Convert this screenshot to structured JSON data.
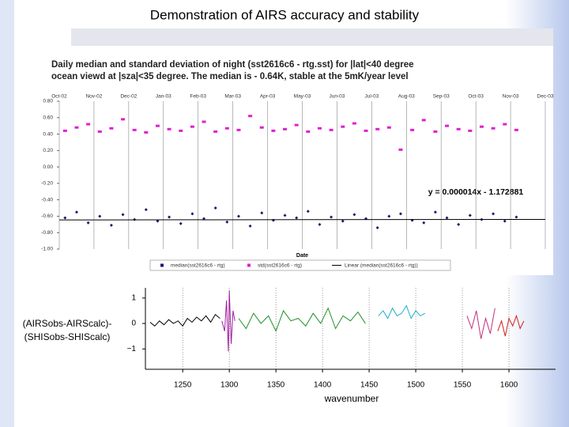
{
  "slide_title": "Demonstration of AIRS accuracy and stability",
  "chart_data": [
    {
      "type": "scatter",
      "title_lines": [
        "Daily median and standard deviation of night (sst2616c6 - rtg.sst) for |lat|<40 degree",
        "ocean viewd at |sza|<35 degree. The median is - 0.64K, stable at the 5mK/year level"
      ],
      "xlabel": "Date",
      "annotation": "y = 0.000014x - 1.172881",
      "xlim": [
        0,
        420
      ],
      "xticks": [
        {
          "value": 0,
          "label": "Oct-02"
        },
        {
          "value": 30,
          "label": "Nov-02"
        },
        {
          "value": 60,
          "label": "Dec-02"
        },
        {
          "value": 90,
          "label": "Jan-03"
        },
        {
          "value": 120,
          "label": "Feb-03"
        },
        {
          "value": 150,
          "label": "Mar-03"
        },
        {
          "value": 180,
          "label": "Apr-03"
        },
        {
          "value": 210,
          "label": "May-03"
        },
        {
          "value": 240,
          "label": "Jun-03"
        },
        {
          "value": 270,
          "label": "Jul-03"
        },
        {
          "value": 300,
          "label": "Aug-03"
        },
        {
          "value": 330,
          "label": "Sep-03"
        },
        {
          "value": 360,
          "label": "Oct-03"
        },
        {
          "value": 390,
          "label": "Nov-03"
        },
        {
          "value": 420,
          "label": "Dec-03"
        }
      ],
      "ylim": [
        -1,
        0.8
      ],
      "yticks": [
        {
          "value": 0.8,
          "label": "0.80"
        },
        {
          "value": 0.6,
          "label": "0.60"
        },
        {
          "value": 0.4,
          "label": "0.40"
        },
        {
          "value": 0.2,
          "label": "0.20"
        },
        {
          "value": 0,
          "label": "0.00"
        },
        {
          "value": -0.2,
          "label": "-0.20"
        },
        {
          "value": -0.4,
          "label": "-0.40"
        },
        {
          "value": -0.6,
          "label": "-0.60"
        },
        {
          "value": -0.8,
          "label": "-0.80"
        },
        {
          "value": -1,
          "label": "-1.00"
        }
      ],
      "grid": "vertical",
      "series": [
        {
          "name": "median(sst2616c6 - rtg)",
          "color": "#1a1a6e",
          "marker": "diamond",
          "x": [
            5,
            15,
            25,
            35,
            45,
            55,
            65,
            75,
            85,
            95,
            105,
            115,
            125,
            135,
            145,
            155,
            165,
            175,
            185,
            195,
            205,
            215,
            225,
            235,
            245,
            255,
            265,
            275,
            285,
            295,
            305,
            315,
            325,
            335,
            345,
            355,
            365,
            375,
            385,
            395
          ],
          "values": [
            -0.62,
            -0.55,
            -0.68,
            -0.6,
            -0.71,
            -0.58,
            -0.64,
            -0.52,
            -0.66,
            -0.61,
            -0.69,
            -0.57,
            -0.63,
            -0.5,
            -0.67,
            -0.6,
            -0.72,
            -0.56,
            -0.65,
            -0.59,
            -0.62,
            -0.54,
            -0.7,
            -0.61,
            -0.66,
            -0.58,
            -0.63,
            -0.74,
            -0.6,
            -0.57,
            -0.65,
            -0.68,
            -0.55,
            -0.62,
            -0.7,
            -0.59,
            -0.64,
            -0.57,
            -0.66,
            -0.61
          ]
        },
        {
          "name": "std(sst2616c6 - rtg)",
          "color": "#e020d0",
          "marker": "square",
          "x": [
            5,
            15,
            25,
            35,
            45,
            55,
            65,
            75,
            85,
            95,
            105,
            115,
            125,
            135,
            145,
            155,
            165,
            175,
            185,
            195,
            205,
            215,
            225,
            235,
            245,
            255,
            265,
            275,
            285,
            295,
            305,
            315,
            325,
            335,
            345,
            355,
            365,
            375,
            385,
            395
          ],
          "values": [
            0.44,
            0.48,
            0.52,
            0.43,
            0.47,
            0.58,
            0.45,
            0.42,
            0.5,
            0.46,
            0.44,
            0.49,
            0.55,
            0.43,
            0.47,
            0.45,
            0.62,
            0.48,
            0.44,
            0.46,
            0.51,
            0.43,
            0.47,
            0.45,
            0.49,
            0.53,
            0.44,
            0.46,
            0.48,
            0.21,
            0.45,
            0.57,
            0.43,
            0.5,
            0.46,
            0.44,
            0.49,
            0.47,
            0.52,
            0.45
          ]
        },
        {
          "name": "Linear (median(sst2616c6 - rtg))",
          "color": "#000000",
          "marker": "line",
          "x": [
            0,
            420
          ],
          "values": [
            -0.645,
            -0.639
          ]
        }
      ]
    },
    {
      "type": "line",
      "ylabel_lines": [
        "(AIRSobs-AIRScalc)-",
        "(SHISobs-SHIScalc)"
      ],
      "xlabel": "wavenumber",
      "xlim": [
        1210,
        1650
      ],
      "xticks": [
        1250,
        1300,
        1350,
        1400,
        1450,
        1500,
        1550,
        1600
      ],
      "ylim": [
        -1.8,
        1.4
      ],
      "yticks": [
        1,
        0,
        {
          "value": -1,
          "label": "−1"
        }
      ],
      "grid": "vertical",
      "series": [
        {
          "name": null,
          "color": "#000000",
          "x": [
            1215,
            1220,
            1225,
            1230,
            1235,
            1240,
            1245,
            1250,
            1255,
            1260,
            1265,
            1270,
            1275,
            1280,
            1285,
            1290
          ],
          "values": [
            0.05,
            -0.1,
            0.1,
            -0.05,
            0.15,
            0.0,
            0.1,
            -0.1,
            0.2,
            0.05,
            0.25,
            0.1,
            0.3,
            0.05,
            0.35,
            0.2
          ]
        },
        {
          "name": null,
          "color": "#a020a0",
          "x": [
            1292,
            1295,
            1297,
            1299,
            1300,
            1302,
            1304,
            1306
          ],
          "values": [
            0.1,
            -0.3,
            0.9,
            -1.1,
            1.3,
            -0.8,
            0.5,
            0.1
          ]
        },
        {
          "name": null,
          "color": "#20902a",
          "x": [
            1310,
            1318,
            1326,
            1334,
            1342,
            1350,
            1358,
            1366,
            1374,
            1382,
            1390,
            1398,
            1406,
            1414,
            1422,
            1430,
            1438,
            1446
          ],
          "values": [
            0.2,
            -0.2,
            0.4,
            0.0,
            0.3,
            -0.3,
            0.5,
            0.1,
            0.2,
            -0.1,
            0.4,
            0.0,
            0.6,
            -0.2,
            0.3,
            0.1,
            0.45,
            0.0
          ]
        },
        {
          "name": null,
          "color": "#20b0c8",
          "x": [
            1460,
            1465,
            1470,
            1475,
            1480,
            1485,
            1490,
            1495,
            1500,
            1505,
            1510
          ],
          "values": [
            0.3,
            0.5,
            0.2,
            0.6,
            0.3,
            0.4,
            0.7,
            0.2,
            0.5,
            0.3,
            0.4
          ]
        },
        {
          "name": null,
          "color": "#c03080",
          "x": [
            1555,
            1560,
            1565,
            1570,
            1575,
            1580,
            1585
          ],
          "values": [
            0.3,
            -0.2,
            0.5,
            -0.6,
            0.2,
            -0.4,
            0.6
          ]
        },
        {
          "name": null,
          "color": "#d02020",
          "x": [
            1588,
            1592,
            1596,
            1600,
            1604,
            1608,
            1612,
            1616
          ],
          "values": [
            -0.3,
            0.1,
            -0.5,
            0.2,
            -0.1,
            0.3,
            -0.2,
            0.1
          ]
        }
      ]
    }
  ]
}
